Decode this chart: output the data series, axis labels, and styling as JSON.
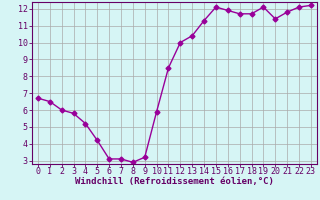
{
  "x": [
    0,
    1,
    2,
    3,
    4,
    5,
    6,
    7,
    8,
    9,
    10,
    11,
    12,
    13,
    14,
    15,
    16,
    17,
    18,
    19,
    20,
    21,
    22,
    23
  ],
  "y": [
    6.7,
    6.5,
    6.0,
    5.8,
    5.2,
    4.2,
    3.1,
    3.1,
    2.9,
    3.2,
    5.9,
    8.5,
    10.0,
    10.4,
    11.3,
    12.1,
    11.9,
    11.7,
    11.7,
    12.1,
    11.4,
    11.8,
    12.1,
    12.2
  ],
  "xlabel": "Windchill (Refroidissement éolien,°C)",
  "xlim_min": -0.5,
  "xlim_max": 23.5,
  "ylim_min": 2.8,
  "ylim_max": 12.4,
  "yticks": [
    3,
    4,
    5,
    6,
    7,
    8,
    9,
    10,
    11,
    12
  ],
  "xticks": [
    0,
    1,
    2,
    3,
    4,
    5,
    6,
    7,
    8,
    9,
    10,
    11,
    12,
    13,
    14,
    15,
    16,
    17,
    18,
    19,
    20,
    21,
    22,
    23
  ],
  "line_color": "#990099",
  "marker": "D",
  "marker_size": 2.5,
  "bg_color": "#d6f5f5",
  "grid_color": "#aaaaaa",
  "axes_color": "#660066",
  "tick_label_color": "#660066",
  "xlabel_color": "#660066",
  "xlabel_fontsize": 6.5,
  "tick_fontsize": 6.0,
  "linewidth": 1.0
}
